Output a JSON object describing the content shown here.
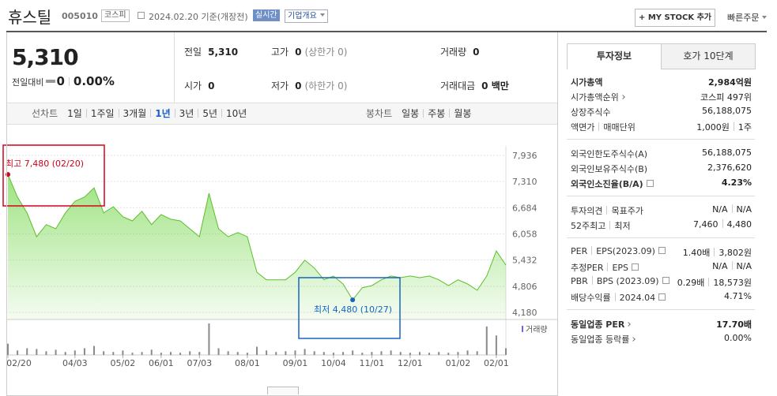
{
  "header": {
    "name": "휴스틸",
    "code": "005010",
    "market": "코스피",
    "date": "2024.02.20 기준(개장전)",
    "realtime": "실시간",
    "company": "기업개요",
    "my_stock": "+ MY STOCK 추가",
    "quick_order": "빠른주문"
  },
  "quote": {
    "price": "5,310",
    "change_label": "전일대비",
    "change": "0",
    "change_rate": "0.00%",
    "fields": [
      {
        "label": "전일",
        "value": "5,310"
      },
      {
        "label": "고가",
        "value": "0",
        "note": "(상한가 0)"
      },
      {
        "label": "거래량",
        "value": "0"
      },
      {
        "label": "시가",
        "value": "0"
      },
      {
        "label": "저가",
        "value": "0",
        "note": "(하한가 0)"
      },
      {
        "label": "거래대금",
        "value": "0 백만"
      }
    ]
  },
  "periods": {
    "line_label": "선차트",
    "line": [
      "1일",
      "1주일",
      "3개월",
      "1년",
      "3년",
      "5년",
      "10년"
    ],
    "line_selected": 3,
    "candle_label": "봉차트",
    "candle": [
      "일봉",
      "주봉",
      "월봉"
    ]
  },
  "chart_data": {
    "type": "area",
    "color": "#7ed957",
    "categories": [
      "02/20",
      null,
      null,
      null,
      null,
      null,
      null,
      "04/03",
      null,
      null,
      null,
      null,
      "05/02",
      null,
      null,
      null,
      "06/01",
      null,
      null,
      null,
      "07/03",
      null,
      null,
      null,
      null,
      "08/01",
      null,
      null,
      null,
      null,
      "09/01",
      null,
      null,
      null,
      "10/04",
      null,
      null,
      null,
      "11/01",
      null,
      null,
      null,
      "12/01",
      null,
      null,
      null,
      null,
      "01/02",
      null,
      null,
      null,
      "02/01",
      null
    ],
    "series": [
      {
        "values": [
          7480,
          6940,
          6560,
          5990,
          6280,
          6180,
          6560,
          6840,
          6940,
          7160,
          6560,
          6710,
          6470,
          6370,
          6600,
          6280,
          6520,
          6410,
          6370,
          6180,
          5990,
          7030,
          6180,
          5990,
          6090,
          5990,
          5140,
          4960,
          4960,
          4960,
          5140,
          5430,
          5240,
          4960,
          5050,
          4860,
          4480,
          4770,
          4820,
          4960,
          5050,
          5010,
          5050,
          5010,
          5050,
          4960,
          4820,
          4960,
          4860,
          4710,
          5050,
          5650,
          5310
        ]
      }
    ],
    "volume": {
      "name": "거래량",
      "color": "#8a8a8a",
      "values": [
        150000,
        60000,
        90000,
        80000,
        50000,
        70000,
        40000,
        60000,
        90000,
        120000,
        50000,
        40000,
        60000,
        30000,
        40000,
        70000,
        30000,
        40000,
        30000,
        50000,
        40000,
        420000,
        90000,
        50000,
        40000,
        30000,
        110000,
        60000,
        40000,
        50000,
        60000,
        80000,
        50000,
        40000,
        30000,
        40000,
        60000,
        30000,
        40000,
        50000,
        60000,
        40000,
        30000,
        40000,
        30000,
        40000,
        30000,
        40000,
        60000,
        50000,
        380000,
        260000,
        90000
      ]
    },
    "ylim": [
      4180,
      7936
    ],
    "yticks": [
      {
        "value": 7936,
        "label": "7,936"
      },
      {
        "value": 7310,
        "label": "7,310"
      },
      {
        "value": 6684,
        "label": "6,684"
      },
      {
        "value": 6058,
        "label": "6,058"
      },
      {
        "value": 5432,
        "label": "5,432"
      },
      {
        "value": 4806,
        "label": "4,806"
      },
      {
        "value": 4180,
        "label": "4,180"
      }
    ],
    "grid": true,
    "annotations": [
      {
        "text": "최고 7,480 (02/20)",
        "value": 7480,
        "color": "#d0021b"
      },
      {
        "text": "최저 4,480 (10/27)",
        "value": 4480,
        "color": "#1565c0"
      }
    ]
  },
  "side": {
    "tabs": [
      "투자정보",
      "호가 10단계"
    ],
    "groups": [
      [
        {
          "label": [
            "시가총액"
          ],
          "value": [
            "2,984억원"
          ],
          "bold": true
        },
        {
          "label": [
            "시가총액순위"
          ],
          "value": [
            "코스피 497위"
          ],
          "more": true
        },
        {
          "label": [
            "상장주식수"
          ],
          "value": [
            "56,188,075"
          ]
        },
        {
          "label": [
            "액면가",
            "매매단위"
          ],
          "value": [
            "1,000원",
            "1주"
          ]
        }
      ],
      [
        {
          "label": [
            "외국인한도주식수(A)"
          ],
          "value": [
            "56,188,075"
          ]
        },
        {
          "label": [
            "외국인보유주식수(B)"
          ],
          "value": [
            "2,376,620"
          ]
        },
        {
          "label": [
            "외국인소진율(B/A)"
          ],
          "value": [
            "4.23%"
          ],
          "bold": true,
          "help": true
        }
      ],
      [
        {
          "label": [
            "투자의견",
            "목표주가"
          ],
          "value": [
            "N/A",
            "N/A"
          ]
        },
        {
          "label": [
            "52주최고",
            "최저"
          ],
          "value": [
            "7,460",
            "4,480"
          ]
        }
      ],
      [
        {
          "label": [
            "PER",
            "EPS(2023.09)"
          ],
          "value": [
            "1.40배",
            "3,802원"
          ],
          "help": true
        },
        {
          "label": [
            "추정PER",
            "EPS"
          ],
          "value": [
            "N/A",
            "N/A"
          ],
          "help": true
        },
        {
          "label": [
            "PBR",
            "BPS (2023.09)"
          ],
          "value": [
            "0.29배",
            "18,573원"
          ],
          "help": true
        },
        {
          "label": [
            "배당수익률",
            "2024.04"
          ],
          "value": [
            "4.71%"
          ],
          "help": true
        }
      ],
      [
        {
          "label": [
            "동일업종 PER"
          ],
          "value": [
            "17.70배"
          ],
          "bold": true,
          "more": true
        },
        {
          "label": [
            "동일업종 등락률"
          ],
          "value": [
            "0.00%"
          ],
          "more": true
        }
      ]
    ]
  }
}
